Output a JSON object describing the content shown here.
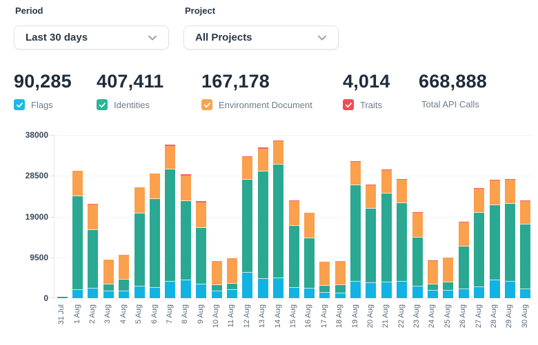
{
  "filters": {
    "period": {
      "label": "Period",
      "value": "Last 30 days"
    },
    "project": {
      "label": "Project",
      "value": "All Projects"
    }
  },
  "metrics": [
    {
      "value": "90,285",
      "label": "Flags",
      "has_checkbox": true,
      "checkbox_color": "#1fb6e8"
    },
    {
      "value": "407,411",
      "label": "Identities",
      "has_checkbox": true,
      "checkbox_color": "#2cb596"
    },
    {
      "value": "167,178",
      "label": "Environment Document",
      "has_checkbox": true,
      "checkbox_color": "#f9a651"
    },
    {
      "value": "4,014",
      "label": "Traits",
      "has_checkbox": true,
      "checkbox_color": "#ef4e55"
    },
    {
      "value": "668,888",
      "label": "Total API Calls",
      "has_checkbox": false,
      "checkbox_color": null
    }
  ],
  "chart_data": {
    "type": "bar",
    "stacked": true,
    "grid": true,
    "legend_position": "none",
    "ylim": [
      0,
      38000
    ],
    "yticks": [
      0,
      9500,
      19000,
      28500,
      38000
    ],
    "xlabel": "",
    "ylabel": "",
    "categories": [
      "31 Jul",
      "1 Aug",
      "2 Aug",
      "3 Aug",
      "4 Aug",
      "5 Aug",
      "6 Aug",
      "7 Aug",
      "8 Aug",
      "9 Aug",
      "10 Aug",
      "11 Aug",
      "12 Aug",
      "13 Aug",
      "14 Aug",
      "15 Aug",
      "16 Aug",
      "17 Aug",
      "18 Aug",
      "19 Aug",
      "20 Aug",
      "21 Aug",
      "22 Aug",
      "23 Aug",
      "24 Aug",
      "25 Aug",
      "26 Aug",
      "27 Aug",
      "28 Aug",
      "29 Aug",
      "30 Aug"
    ],
    "series": [
      {
        "name": "Flags",
        "color": "#12b3e2",
        "values": [
          0,
          2000,
          2200,
          1550,
          1650,
          2750,
          2400,
          3800,
          4250,
          3150,
          1650,
          1950,
          5950,
          4500,
          4650,
          2450,
          2300,
          1250,
          1150,
          3850,
          3450,
          3700,
          3800,
          2800,
          1800,
          1700,
          2050,
          2550,
          4100,
          3850,
          2100
        ]
      },
      {
        "name": "Identities",
        "color": "#2aa892",
        "values": [
          300,
          21800,
          13750,
          1610,
          2670,
          17000,
          20750,
          26200,
          18300,
          13200,
          1350,
          1450,
          21600,
          25000,
          26450,
          14450,
          11650,
          1600,
          1850,
          22400,
          17350,
          20650,
          18300,
          11350,
          1400,
          1950,
          9900,
          17350,
          17600,
          18150,
          15100
        ]
      },
      {
        "name": "Environment Document",
        "color": "#fba04d",
        "values": [
          0,
          5900,
          5900,
          5800,
          5800,
          6000,
          5800,
          5500,
          6000,
          6000,
          5700,
          5900,
          5300,
          5350,
          5450,
          5700,
          5900,
          5650,
          5700,
          5450,
          5500,
          5550,
          5450,
          5750,
          5450,
          5850,
          5700,
          5600,
          5650,
          5550,
          5400
        ]
      },
      {
        "name": "Traits",
        "color": "#f2606a",
        "values": [
          0,
          0,
          100,
          0,
          0,
          100,
          150,
          250,
          250,
          200,
          0,
          0,
          250,
          200,
          200,
          100,
          100,
          0,
          0,
          250,
          100,
          100,
          250,
          100,
          150,
          0,
          200,
          100,
          250,
          200,
          100
        ]
      }
    ]
  }
}
